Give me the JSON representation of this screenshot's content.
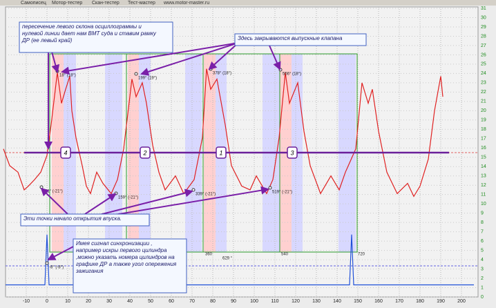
{
  "tabs": [
    "Самописец",
    "Мотор-тестер",
    "Скан-тестер",
    "Тест-мастер",
    "www.motor-master.ru"
  ],
  "chart_data": {
    "type": "line",
    "series": [
      {
        "color": "#e02020",
        "x": [
          -21,
          -18,
          -14,
          -11,
          -9,
          -6,
          -3,
          0,
          2,
          5,
          7,
          9,
          11,
          12,
          14,
          17,
          19,
          21,
          24,
          27,
          31,
          34,
          37,
          41,
          43,
          46,
          48,
          51,
          54,
          57,
          62,
          66,
          71,
          75,
          77,
          79,
          82,
          86,
          89,
          94,
          98,
          101,
          106,
          109,
          112,
          115,
          117,
          121,
          124,
          127,
          132,
          137,
          141,
          144,
          149,
          152,
          155,
          157,
          160,
          164,
          169,
          174,
          177,
          180,
          184,
          187,
          190,
          191
        ],
        "values": [
          15.9,
          14.1,
          13.4,
          11.5,
          11.9,
          12.6,
          13.4,
          15.2,
          18.5,
          24.1,
          20.8,
          22.3,
          23.7,
          20.0,
          17.1,
          14.1,
          11.9,
          11.1,
          13.4,
          12.2,
          11.1,
          12.6,
          15.9,
          23.4,
          21.5,
          23.0,
          20.8,
          16.3,
          13.4,
          11.5,
          13.0,
          11.1,
          12.6,
          17.1,
          24.5,
          22.3,
          23.4,
          18.5,
          14.1,
          11.9,
          11.5,
          13.0,
          11.1,
          12.6,
          17.1,
          24.1,
          20.8,
          23.0,
          17.8,
          14.1,
          11.1,
          13.0,
          11.5,
          13.4,
          15.9,
          23.0,
          20.8,
          22.3,
          17.8,
          13.4,
          11.1,
          12.2,
          10.8,
          11.9,
          14.8,
          20.0,
          23.7,
          21.5
        ]
      },
      {
        "color": "#1f4fd8",
        "x": [
          -20,
          -1,
          0,
          1,
          146,
          147,
          148,
          206
        ],
        "values": [
          1.3,
          1.3,
          6.7,
          1.3,
          1.3,
          6.7,
          1.3,
          1.3
        ]
      }
    ],
    "xlim": [
      -20,
      208
    ],
    "xticks": [
      -10,
      0,
      10,
      20,
      30,
      40,
      50,
      60,
      70,
      80,
      90,
      100,
      110,
      120,
      130,
      140,
      150,
      160,
      170,
      180,
      190,
      200
    ],
    "ylim": [
      0,
      31
    ],
    "yticks": [
      0,
      1,
      2,
      3,
      4,
      5,
      6,
      7,
      8,
      9,
      10,
      11,
      12,
      13,
      14,
      15,
      16,
      17,
      18,
      19,
      20,
      21,
      22,
      23,
      24,
      25,
      26,
      27,
      28,
      29,
      30,
      31
    ],
    "grid": true,
    "annotations": {
      "tdc": "пересечение левого склона осциллограммы и нулевой линии дает нам  ВМТ суда и ставим рамку ДР (ее левый край)",
      "exhaust": "Здесь закрываются выпускные клапана",
      "intake": "Эти точки   начало открытия впуска.",
      "sync": "Имея сигнал синхронизации , например искры первого цилиндра ,можно указать номера цилиндров на графике ДР а также угол опережения зажигания"
    },
    "point_labels": [
      "18° (18°)",
      "199° (19°)",
      "378° (18°)",
      "556° (18°)",
      "-21° (-21°)",
      "159° (-21°)",
      "339° (-21°)",
      "519° (-21°)",
      "-8° (-8°)"
    ],
    "cylinders": [
      "4",
      "2",
      "1",
      "3"
    ],
    "frame_labels": [
      "360",
      "540",
      "720",
      "629 °"
    ]
  }
}
